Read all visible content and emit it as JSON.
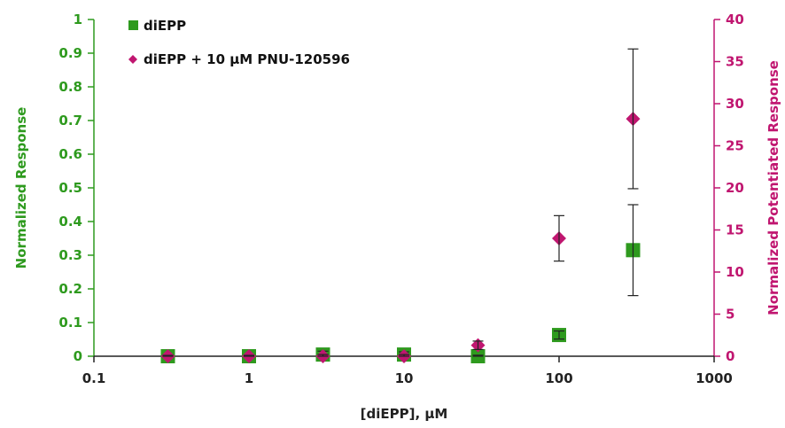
{
  "chart_data": {
    "type": "scatter",
    "xlabel": "[diEPP], μM",
    "ylabel_left": "Normalized Response",
    "ylabel_right": "Normalized Potentiated Response",
    "x_scale": "log",
    "xlim": [
      0.1,
      1000
    ],
    "x_ticks": [
      "0.1",
      "1",
      "10",
      "100",
      "1000"
    ],
    "ylim_left": [
      0,
      1
    ],
    "y_ticks_left": [
      "0",
      "0.1",
      "0.2",
      "0.3",
      "0.4",
      "0.5",
      "0.6",
      "0.7",
      "0.8",
      "0.9",
      "1"
    ],
    "ylim_right": [
      0,
      40
    ],
    "y_ticks_right": [
      "0",
      "5",
      "10",
      "15",
      "20",
      "25",
      "30",
      "35",
      "40"
    ],
    "grid": false,
    "legend_position": "top-left",
    "colors": {
      "left_axis": "#2e9a1e",
      "right_axis": "#c01670",
      "series1": "#2e9a1e",
      "series2": "#c01670"
    },
    "series": [
      {
        "name": "diEPP",
        "marker": "square",
        "axis": "left",
        "x": [
          0.3,
          1,
          3,
          10,
          30,
          100,
          300
        ],
        "y": [
          0.0,
          0.0,
          0.005,
          0.005,
          0.0,
          0.063,
          0.315
        ],
        "err": [
          0.003,
          0.003,
          0.01,
          0.008,
          0.003,
          0.012,
          0.135
        ]
      },
      {
        "name": "diEPP + 10 μM PNU-120596",
        "marker": "diamond",
        "axis": "right",
        "x": [
          0.3,
          1,
          3,
          10,
          30,
          100,
          300
        ],
        "y": [
          0.0,
          0.0,
          0.0,
          0.0,
          1.3,
          14.0,
          28.2
        ],
        "err": [
          0.1,
          0.1,
          0.2,
          0.2,
          0.5,
          2.7,
          8.3
        ]
      }
    ]
  }
}
